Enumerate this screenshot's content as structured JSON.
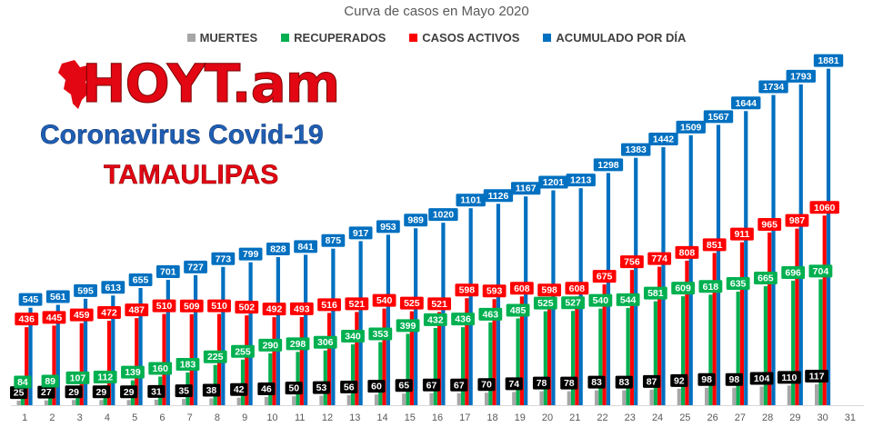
{
  "chart_data": {
    "type": "bar",
    "title": "Curva de casos en Mayo 2020",
    "categories": [
      "1",
      "2",
      "3",
      "4",
      "5",
      "6",
      "7",
      "8",
      "9",
      "10",
      "11",
      "12",
      "13",
      "14",
      "15",
      "16",
      "17",
      "18",
      "19",
      "20",
      "21",
      "22",
      "23",
      "24",
      "25",
      "26",
      "27",
      "28",
      "29",
      "30",
      "31"
    ],
    "series": [
      {
        "name": "MUERTES",
        "color": "#a6a6a6",
        "label_color": "#000000",
        "values": [
          25,
          27,
          29,
          29,
          29,
          31,
          35,
          38,
          42,
          46,
          50,
          53,
          56,
          60,
          65,
          67,
          67,
          70,
          74,
          78,
          78,
          83,
          83,
          87,
          92,
          98,
          98,
          104,
          110,
          117,
          null
        ]
      },
      {
        "name": "RECUPERADOS",
        "color": "#00b050",
        "label_color": "#00b050",
        "values": [
          84,
          89,
          107,
          112,
          139,
          160,
          183,
          225,
          255,
          290,
          298,
          306,
          340,
          353,
          399,
          432,
          436,
          463,
          485,
          525,
          527,
          540,
          544,
          581,
          609,
          618,
          635,
          665,
          696,
          704,
          null
        ]
      },
      {
        "name": "CASOS ACTIVOS",
        "color": "#ff0000",
        "label_color": "#ff0000",
        "values": [
          436,
          445,
          459,
          472,
          487,
          510,
          509,
          510,
          502,
          492,
          493,
          516,
          521,
          540,
          525,
          521,
          598,
          593,
          608,
          598,
          608,
          675,
          756,
          774,
          808,
          851,
          911,
          965,
          987,
          1060,
          null
        ]
      },
      {
        "name": "ACUMULADO POR DÍA",
        "color": "#0070c0",
        "label_color": "#0070c0",
        "values": [
          545,
          561,
          595,
          613,
          655,
          701,
          727,
          773,
          799,
          828,
          841,
          875,
          917,
          953,
          989,
          1020,
          1101,
          1126,
          1167,
          1201,
          1213,
          1298,
          1383,
          1442,
          1509,
          1567,
          1644,
          1734,
          1793,
          1881,
          null
        ]
      }
    ],
    "legend_position": "top",
    "grid": false,
    "ylim": [
      0,
      1950
    ]
  },
  "brand": {
    "logo": "HOYT.am",
    "subtitle": "Coronavirus Covid-19",
    "state": "TAMAULIPAS"
  }
}
